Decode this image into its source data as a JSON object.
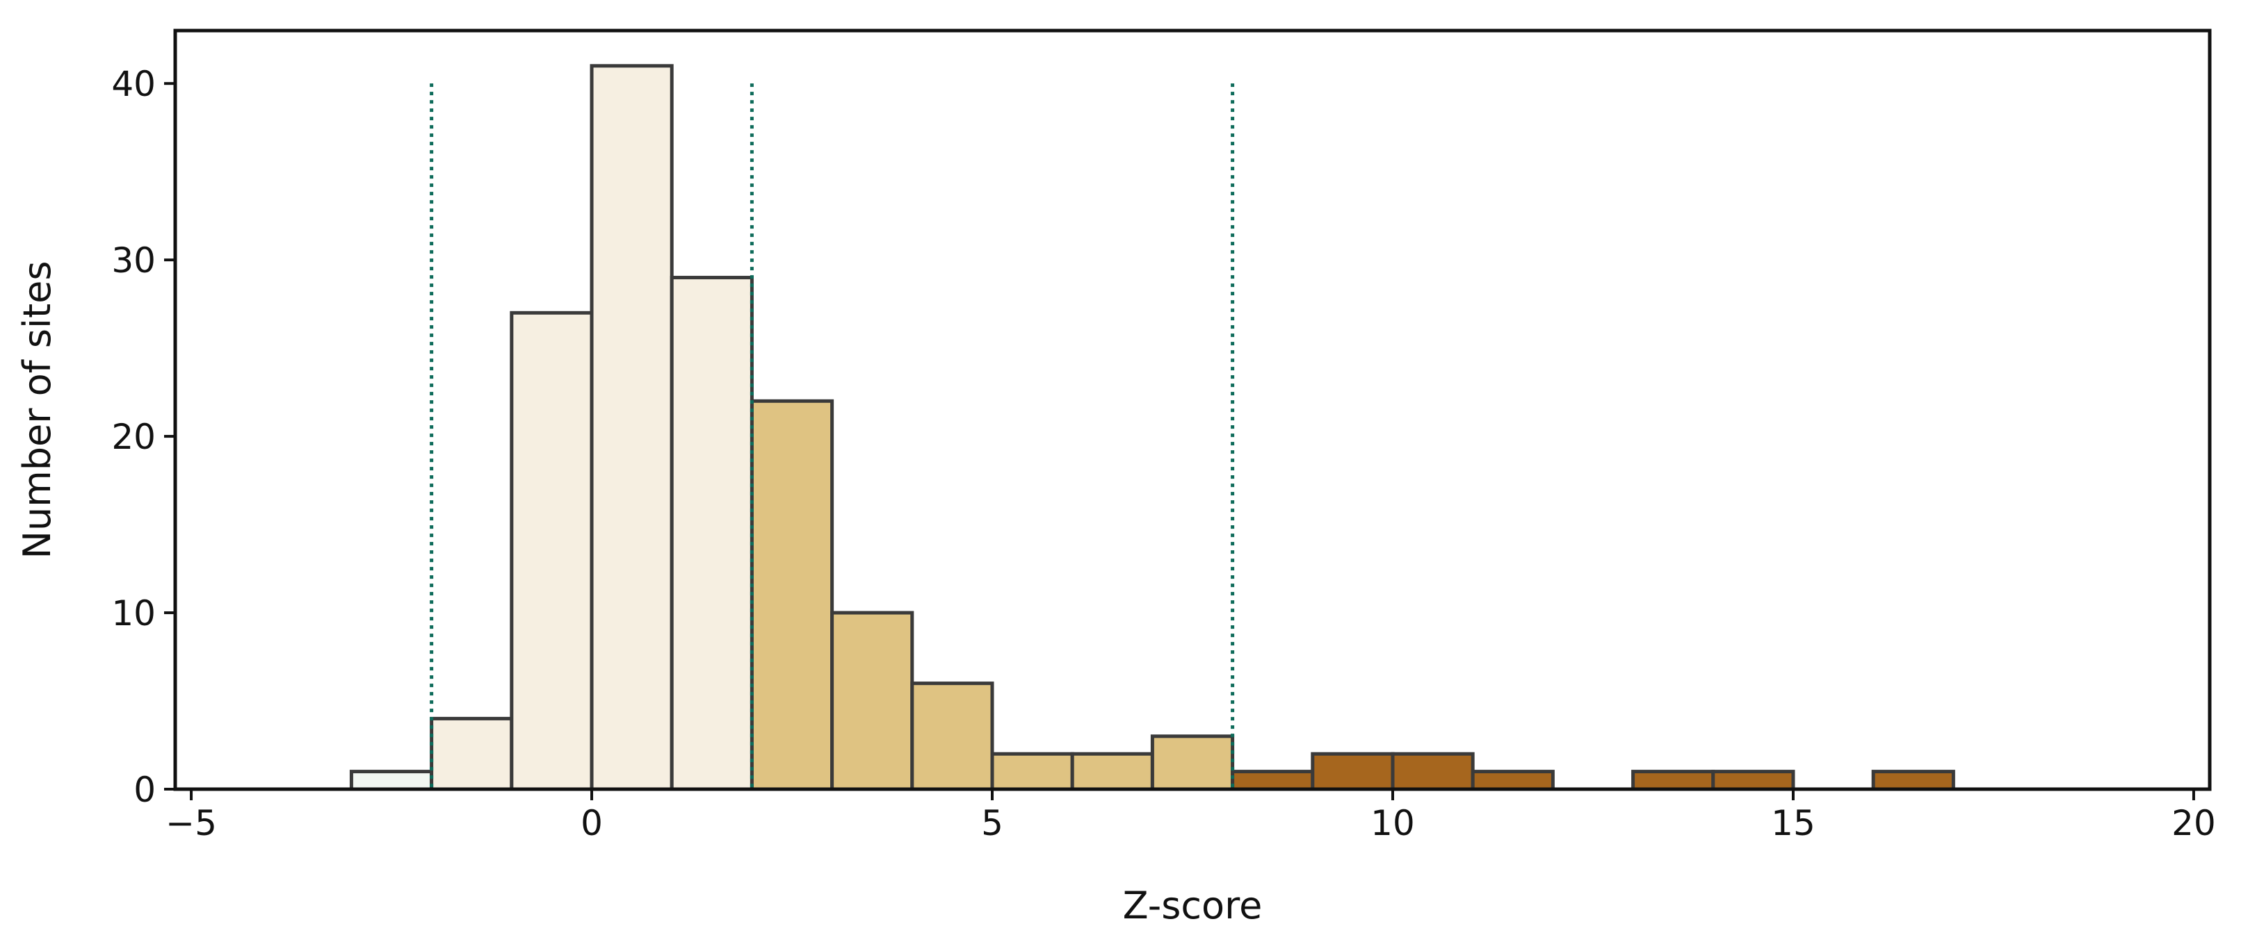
{
  "chart_data": {
    "type": "bar",
    "title": "",
    "xlabel": "Z-score",
    "ylabel": "Number of sites",
    "xlim": [
      -5.2,
      20.2
    ],
    "ylim": [
      0,
      43
    ],
    "x_ticks": [
      -5,
      0,
      5,
      10,
      15,
      20
    ],
    "x_tick_labels": [
      "−5",
      "0",
      "5",
      "10",
      "15",
      "20"
    ],
    "y_ticks": [
      0,
      10,
      20,
      30,
      40
    ],
    "y_tick_labels": [
      "0",
      "10",
      "20",
      "30",
      "40"
    ],
    "grid": false,
    "bin_width": 1,
    "bins": [
      {
        "start": -5,
        "count": 0,
        "color": "#f7fbf8"
      },
      {
        "start": -4,
        "count": 0,
        "color": "#f7fbf8"
      },
      {
        "start": -3,
        "count": 1,
        "color": "#f2f7f2"
      },
      {
        "start": -2,
        "count": 4,
        "color": "#f6efe1"
      },
      {
        "start": -1,
        "count": 27,
        "color": "#f6efe1"
      },
      {
        "start": 0,
        "count": 41,
        "color": "#f6efe1"
      },
      {
        "start": 1,
        "count": 29,
        "color": "#f6efe1"
      },
      {
        "start": 2,
        "count": 22,
        "color": "#dfc382"
      },
      {
        "start": 3,
        "count": 10,
        "color": "#dfc382"
      },
      {
        "start": 4,
        "count": 6,
        "color": "#dfc382"
      },
      {
        "start": 5,
        "count": 2,
        "color": "#dfc382"
      },
      {
        "start": 6,
        "count": 2,
        "color": "#dfc382"
      },
      {
        "start": 7,
        "count": 3,
        "color": "#dfc382"
      },
      {
        "start": 8,
        "count": 1,
        "color": "#a6661e"
      },
      {
        "start": 9,
        "count": 2,
        "color": "#a6661e"
      },
      {
        "start": 10,
        "count": 2,
        "color": "#a6661e"
      },
      {
        "start": 11,
        "count": 1,
        "color": "#a6661e"
      },
      {
        "start": 12,
        "count": 0,
        "color": "#a6661e"
      },
      {
        "start": 13,
        "count": 1,
        "color": "#a6661e"
      },
      {
        "start": 14,
        "count": 1,
        "color": "#a6661e"
      },
      {
        "start": 15,
        "count": 0,
        "color": "#a6661e"
      },
      {
        "start": 16,
        "count": 1,
        "color": "#a6661e"
      },
      {
        "start": 17,
        "count": 0,
        "color": "#a6661e"
      },
      {
        "start": 18,
        "count": 0,
        "color": "#a6661e"
      }
    ],
    "threshold_lines": [
      {
        "x": -2,
        "top": 40,
        "color": "#0e6b5a"
      },
      {
        "x": 2,
        "top": 40,
        "color": "#0e6b5a"
      },
      {
        "x": 8,
        "top": 40,
        "color": "#0e6b5a"
      }
    ],
    "bar_edge_color": "#3a3a3a"
  }
}
